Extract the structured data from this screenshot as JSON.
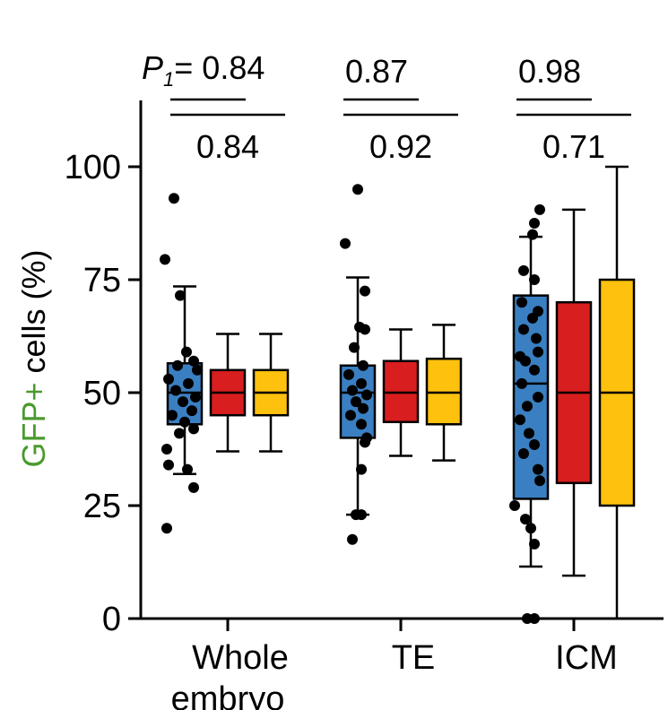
{
  "chart_data": {
    "type": "box",
    "ylabel": {
      "prefix": "GFP+",
      "suffix": " cells (%)"
    },
    "ylim": [
      0,
      100
    ],
    "yticks": [
      0,
      25,
      50,
      75,
      100
    ],
    "categories": [
      "Whole",
      "TE",
      "ICM"
    ],
    "category_second_line": [
      "embryo",
      "",
      ""
    ],
    "p_label_prefix": "P",
    "p_label_subscript": "1",
    "p_label_equals": "=",
    "colors": {
      "blue": "#3a7fc1",
      "red": "#d81e1e",
      "yellow": "#fec10e",
      "green_label": "#4a9a2e"
    },
    "groups": [
      {
        "name": "Whole",
        "p_top": "0.84",
        "p_bottom": "0.84",
        "boxes": [
          {
            "color": "blue",
            "whisker_low": 32,
            "q1": 43,
            "median": 50,
            "q3": 56.5,
            "whisker_high": 73.5
          },
          {
            "color": "red",
            "whisker_low": 37,
            "q1": 45,
            "median": 50,
            "q3": 55,
            "whisker_high": 63
          },
          {
            "color": "yellow",
            "whisker_low": 37,
            "q1": 45,
            "median": 50,
            "q3": 55,
            "whisker_high": 63
          }
        ],
        "points": [
          {
            "dx": -12,
            "y": 93
          },
          {
            "dx": -22,
            "y": 79.5
          },
          {
            "dx": -5,
            "y": 71.5
          },
          {
            "dx": 2,
            "y": 59
          },
          {
            "dx": 10,
            "y": 57
          },
          {
            "dx": -8,
            "y": 56
          },
          {
            "dx": 14,
            "y": 55
          },
          {
            "dx": -18,
            "y": 53
          },
          {
            "dx": 4,
            "y": 52
          },
          {
            "dx": -10,
            "y": 50.5
          },
          {
            "dx": 12,
            "y": 49
          },
          {
            "dx": -2,
            "y": 48
          },
          {
            "dx": 8,
            "y": 46
          },
          {
            "dx": -14,
            "y": 45
          },
          {
            "dx": 0,
            "y": 43.5
          },
          {
            "dx": 10,
            "y": 42
          },
          {
            "dx": -20,
            "y": 37.5
          },
          {
            "dx": -6,
            "y": 41
          },
          {
            "dx": -18,
            "y": 34
          },
          {
            "dx": 3,
            "y": 33
          },
          {
            "dx": 10,
            "y": 29
          },
          {
            "dx": -20,
            "y": 20
          }
        ]
      },
      {
        "name": "TE",
        "p_top": "0.87",
        "p_bottom": "0.92",
        "boxes": [
          {
            "color": "blue",
            "whisker_low": 23,
            "q1": 40,
            "median": 50,
            "q3": 56,
            "whisker_high": 75.5
          },
          {
            "color": "red",
            "whisker_low": 36,
            "q1": 43.5,
            "median": 50,
            "q3": 57,
            "whisker_high": 64
          },
          {
            "color": "yellow",
            "whisker_low": 35,
            "q1": 43,
            "median": 50,
            "q3": 57.5,
            "whisker_high": 65
          }
        ],
        "points": [
          {
            "dx": 0,
            "y": 95
          },
          {
            "dx": -14,
            "y": 83
          },
          {
            "dx": 8,
            "y": 72.5
          },
          {
            "dx": 2,
            "y": 64.5
          },
          {
            "dx": 8,
            "y": 64
          },
          {
            "dx": -4,
            "y": 60
          },
          {
            "dx": 6,
            "y": 56
          },
          {
            "dx": -10,
            "y": 54
          },
          {
            "dx": 4,
            "y": 52
          },
          {
            "dx": -6,
            "y": 50.5
          },
          {
            "dx": 10,
            "y": 49.5
          },
          {
            "dx": -2,
            "y": 48
          },
          {
            "dx": 6,
            "y": 46.5
          },
          {
            "dx": -8,
            "y": 45
          },
          {
            "dx": 4,
            "y": 43
          },
          {
            "dx": 10,
            "y": 40
          },
          {
            "dx": 8,
            "y": 39
          },
          {
            "dx": 4,
            "y": 33
          },
          {
            "dx": -2,
            "y": 23
          },
          {
            "dx": 4,
            "y": 23
          },
          {
            "dx": -6,
            "y": 17.5
          }
        ]
      },
      {
        "name": "ICM",
        "p_top": "0.98",
        "p_bottom": "0.71",
        "boxes": [
          {
            "color": "blue",
            "whisker_low": 11.5,
            "q1": 26.5,
            "median": 52,
            "q3": 71.5,
            "whisker_high": 84.5
          },
          {
            "color": "red",
            "whisker_low": 9.5,
            "q1": 30,
            "median": 50,
            "q3": 70,
            "whisker_high": 90.5
          },
          {
            "color": "yellow",
            "whisker_low": 0,
            "q1": 25,
            "median": 50,
            "q3": 75,
            "whisker_high": 100
          }
        ],
        "points": [
          {
            "dx": 10,
            "y": 90.5
          },
          {
            "dx": 4,
            "y": 87.5
          },
          {
            "dx": 2,
            "y": 85
          },
          {
            "dx": -8,
            "y": 77
          },
          {
            "dx": 4,
            "y": 75
          },
          {
            "dx": -10,
            "y": 70
          },
          {
            "dx": 8,
            "y": 68
          },
          {
            "dx": 2,
            "y": 66.5
          },
          {
            "dx": -8,
            "y": 64
          },
          {
            "dx": 6,
            "y": 62
          },
          {
            "dx": 8,
            "y": 59
          },
          {
            "dx": -12,
            "y": 58
          },
          {
            "dx": -6,
            "y": 57
          },
          {
            "dx": 4,
            "y": 55
          },
          {
            "dx": -10,
            "y": 52
          },
          {
            "dx": 8,
            "y": 49
          },
          {
            "dx": -4,
            "y": 47
          },
          {
            "dx": -12,
            "y": 44
          },
          {
            "dx": -2,
            "y": 41
          },
          {
            "dx": 4,
            "y": 38.5
          },
          {
            "dx": -8,
            "y": 36.5
          },
          {
            "dx": 8,
            "y": 33
          },
          {
            "dx": 10,
            "y": 30.5
          },
          {
            "dx": -18,
            "y": 25
          },
          {
            "dx": -6,
            "y": 22
          },
          {
            "dx": 0,
            "y": 20
          },
          {
            "dx": 4,
            "y": 16.5
          },
          {
            "dx": -4,
            "y": 0
          },
          {
            "dx": 4,
            "y": 0
          }
        ]
      }
    ]
  }
}
